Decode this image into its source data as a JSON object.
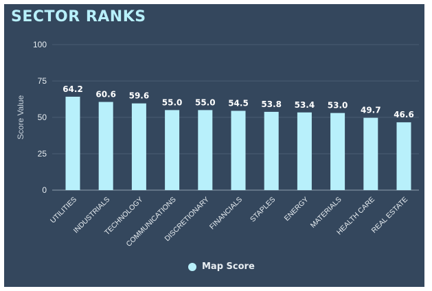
{
  "title": "SECTOR RANKS",
  "chart_data": {
    "type": "bar",
    "categories": [
      "UTILITIES",
      "INDUSTRIALS",
      "TECHNOLOGY",
      "COMMUNICATIONS",
      "DISCRETIONARY",
      "FINANCIALS",
      "STAPLES",
      "ENERGY",
      "MATERIALS",
      "HEALTH CARE",
      "REAL ESTATE"
    ],
    "series": [
      {
        "name": "Map Score",
        "values": [
          64.2,
          60.6,
          59.6,
          55.0,
          55.0,
          54.5,
          53.8,
          53.4,
          53.0,
          49.7,
          46.6
        ]
      }
    ],
    "data_labels": [
      "64.2",
      "60.6",
      "59.6",
      "55.0",
      "55.0",
      "54.5",
      "53.8",
      "53.4",
      "53.0",
      "49.7",
      "46.6"
    ],
    "ylabel": "Score Value",
    "xlabel": "",
    "ylim": [
      0,
      100
    ],
    "yticks": [
      0,
      25,
      50,
      75,
      100
    ],
    "grid": true,
    "legend_position": "bottom-center",
    "colors": {
      "background": "#34475d",
      "bar": "#b8f0fb",
      "title": "#b8f0fb",
      "text": "#e8eef2",
      "grid": "#4a5d72"
    }
  },
  "legend": {
    "label": "Map Score"
  }
}
